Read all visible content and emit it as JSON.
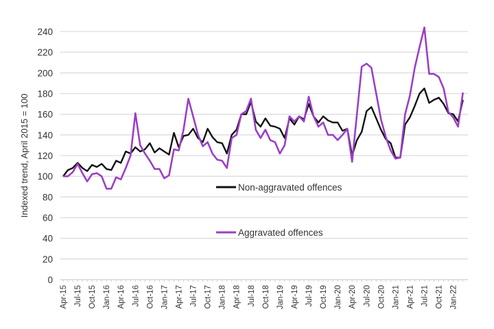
{
  "chart_data": {
    "type": "line",
    "title": "",
    "xlabel": "",
    "ylabel": "Indexed trend, April 2015 = 100",
    "ylim": [
      0,
      240
    ],
    "yticks": [
      0,
      20,
      40,
      60,
      80,
      100,
      120,
      140,
      160,
      180,
      200,
      220,
      240
    ],
    "grid": true,
    "xtick_labels": [
      "Apr-15",
      "Jul-15",
      "Oct-15",
      "Jan-16",
      "Apr-16",
      "Jul-16",
      "Oct-16",
      "Jan-17",
      "Apr-17",
      "Jul-17",
      "Oct-17",
      "Jan-18",
      "Apr-18",
      "Jul-18",
      "Oct-18",
      "Jan-19",
      "Apr-19",
      "Jul-19",
      "Oct-19",
      "Jan-20",
      "Apr-20",
      "Jul-20",
      "Oct-20",
      "Jan-21",
      "Apr-21",
      "Jul-21",
      "Oct-21",
      "Jan-22"
    ],
    "x_start": "Apr-15",
    "x_end": "Mar-22",
    "series": [
      {
        "name": "Non-aggravated offences",
        "color": "#111111",
        "values": [
          100,
          106,
          108,
          113,
          108,
          105,
          111,
          109,
          112,
          107,
          106,
          115,
          113,
          124,
          122,
          128,
          124,
          126,
          132,
          123,
          127,
          124,
          121,
          142,
          128,
          139,
          140,
          146,
          137,
          133,
          146,
          138,
          133,
          132,
          122,
          140,
          145,
          160,
          160,
          172,
          153,
          148,
          156,
          149,
          148,
          146,
          137,
          156,
          150,
          158,
          155,
          170,
          158,
          152,
          158,
          154,
          152,
          152,
          144,
          146,
          120,
          135,
          143,
          163,
          167,
          156,
          145,
          136,
          132,
          118,
          118,
          150,
          157,
          168,
          180,
          185,
          171,
          174,
          176,
          170,
          161,
          160,
          153,
          174
        ]
      },
      {
        "name": "Aggravated offences",
        "color": "#9b3fc6",
        "values": [
          100,
          100,
          104,
          112,
          103,
          95,
          102,
          103,
          100,
          88,
          88,
          99,
          97,
          108,
          120,
          161,
          130,
          122,
          115,
          107,
          107,
          98,
          101,
          126,
          125,
          145,
          175,
          158,
          140,
          129,
          133,
          122,
          116,
          115,
          108,
          137,
          140,
          160,
          163,
          175,
          145,
          137,
          145,
          135,
          133,
          122,
          130,
          158,
          153,
          158,
          153,
          177,
          158,
          148,
          152,
          140,
          140,
          135,
          140,
          146,
          114,
          160,
          206,
          209,
          205,
          180,
          155,
          138,
          125,
          117,
          118,
          160,
          178,
          205,
          225,
          244,
          199,
          199,
          196,
          185,
          162,
          157,
          148,
          181
        ]
      }
    ],
    "legend": "inside-center"
  }
}
